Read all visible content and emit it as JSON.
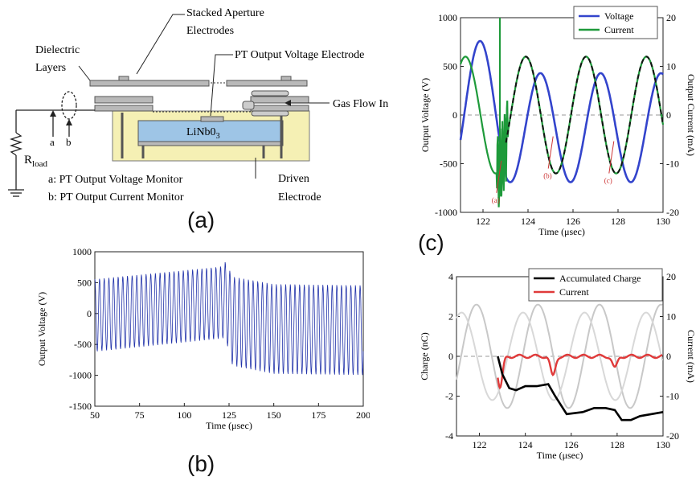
{
  "panel_labels": {
    "a": "(a)",
    "b": "(b)",
    "c": "(c)"
  },
  "diagram": {
    "labels": {
      "stacked": [
        "Stacked Aperture",
        "Electrodes"
      ],
      "dielectric": [
        "Dielectric",
        "Layers"
      ],
      "pt_output": "PT Output Voltage Electrode",
      "gas_flow": "Gas Flow In",
      "crystal_main": "LiNb0",
      "crystal_sub": "3",
      "rload_main": "R",
      "rload_sub": "load",
      "monitor_a_letter": "a",
      "monitor_b_letter": "b",
      "monitor_a": "a: PT Output Voltage Monitor",
      "monitor_b": "b: PT Output Current Monitor",
      "driven": [
        "Driven",
        "Electrode"
      ]
    },
    "colors": {
      "crystal": "#9ec5e6",
      "housing": "#f5f0b4",
      "plate": "#b9b9b9"
    }
  },
  "chart_data": [
    {
      "id": "b",
      "type": "line",
      "xlabel": "Time (μsec)",
      "ylabel": "Output Voltage (V)",
      "xlim": [
        50,
        200
      ],
      "ylim": [
        -1500,
        1000
      ],
      "xticks": [
        50,
        75,
        100,
        125,
        150,
        175,
        200
      ],
      "yticks": [
        -1500,
        -1000,
        -500,
        0,
        500,
        1000
      ],
      "series": [
        {
          "color": "#2233aa",
          "envelope": [
            {
              "t": 50,
              "hi": 560,
              "lo": -620
            },
            {
              "t": 120,
              "hi": 760,
              "lo": -410
            },
            {
              "t": 123,
              "hi": 840,
              "lo": -400
            },
            {
              "t": 127,
              "hi": 600,
              "lo": -850
            },
            {
              "t": 150,
              "hi": 480,
              "lo": -980
            },
            {
              "t": 200,
              "hi": 460,
              "lo": -1000
            }
          ],
          "period": 2.6
        }
      ]
    },
    {
      "id": "c",
      "type": "line",
      "xlabel": "Time (μsec)",
      "ylabel": "Output Voltage (V)",
      "y2label": "Output Current (mA)",
      "xlim": [
        121,
        130
      ],
      "ylim": [
        -1000,
        1000
      ],
      "y2lim": [
        -20,
        20
      ],
      "xticks": [
        122,
        124,
        126,
        128,
        130
      ],
      "yticks": [
        -1000,
        -500,
        0,
        500,
        1000
      ],
      "y2ticks": [
        -20,
        -10,
        0,
        10,
        20
      ],
      "legend": "top-right",
      "series": [
        {
          "name": "Voltage",
          "color": "#3344cc",
          "axis": "left"
        },
        {
          "name": "Current",
          "color": "#1e9a3a",
          "axis": "right"
        }
      ],
      "annotations": [
        {
          "text": "(a)",
          "x": 122.6,
          "y": -800,
          "color": "#cc3333"
        },
        {
          "text": "(b)",
          "x": 124.9,
          "y": -550,
          "color": "#cc3333"
        },
        {
          "text": "(c)",
          "x": 127.6,
          "y": -600,
          "color": "#cc3333"
        }
      ]
    },
    {
      "id": "d",
      "type": "line",
      "xlabel": "Time (μsec)",
      "ylabel": "Charge (nC)",
      "y2label": "Current (mA)",
      "xlim": [
        121,
        130
      ],
      "ylim": [
        -4,
        4
      ],
      "y2lim": [
        -20,
        20
      ],
      "xticks": [
        122,
        124,
        126,
        128,
        130
      ],
      "yticks": [
        -4,
        -2,
        0,
        2,
        4
      ],
      "y2ticks": [
        -20,
        -10,
        0,
        10,
        20
      ],
      "legend": "top-right",
      "series": [
        {
          "name": "Accumulated Charge",
          "color": "#000000",
          "x": [
            122.8,
            123.0,
            123.3,
            123.6,
            124.0,
            124.5,
            125.0,
            125.3,
            125.8,
            126.5,
            127.0,
            127.5,
            127.9,
            128.2,
            128.6,
            129.0,
            129.5,
            130.0
          ],
          "values": [
            0.0,
            -0.9,
            -1.6,
            -1.7,
            -1.5,
            -1.5,
            -1.4,
            -2.0,
            -2.9,
            -2.8,
            -2.6,
            -2.6,
            -2.7,
            -3.2,
            -3.2,
            -3.0,
            -2.9,
            -2.8
          ]
        },
        {
          "name": "Current",
          "color": "#e03a3a",
          "axis": "right"
        }
      ]
    }
  ]
}
